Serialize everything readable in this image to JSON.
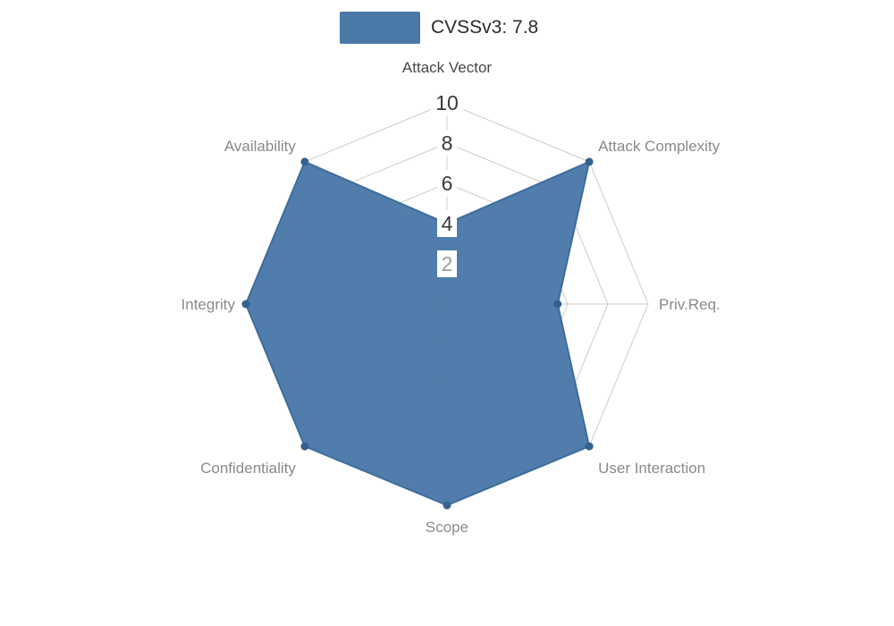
{
  "legend": {
    "label": "CVSSv3: 7.8",
    "swatch_color": "#4A79A8",
    "position": "top"
  },
  "chart_data": {
    "type": "radar",
    "categories": [
      "Attack Vector",
      "Attack Complexity",
      "Priv.Req.",
      "User Interaction",
      "Scope",
      "Confidentiality",
      "Integrity",
      "Availability"
    ],
    "category_colors": [
      "#474747",
      "#8a8a8a",
      "#8a8a8a",
      "#8a8a8a",
      "#8a8a8a",
      "#8a8a8a",
      "#8a8a8a",
      "#8a8a8a"
    ],
    "series": [
      {
        "name": "CVSSv3: 7.8",
        "values": [
          4,
          10,
          5.5,
          10,
          10,
          10,
          10,
          10
        ],
        "fill_color": "#4A79A8",
        "stroke_color": "#3E6C9B",
        "marker_color": "#35618F"
      }
    ],
    "ticks": [
      {
        "label": "10",
        "value": 10,
        "color": "#3a3a3a"
      },
      {
        "label": "8",
        "value": 8,
        "color": "#3a3a3a"
      },
      {
        "label": "6",
        "value": 6,
        "color": "#3a3a3a"
      },
      {
        "label": "4",
        "value": 4,
        "color": "#3a3a3a"
      },
      {
        "label": "2",
        "value": 2,
        "color": "#9c9c9c"
      }
    ],
    "range": [
      0,
      10
    ],
    "grid": true,
    "grid_color": "#cccccc",
    "background": "#ffffff",
    "legend_position": "top"
  }
}
